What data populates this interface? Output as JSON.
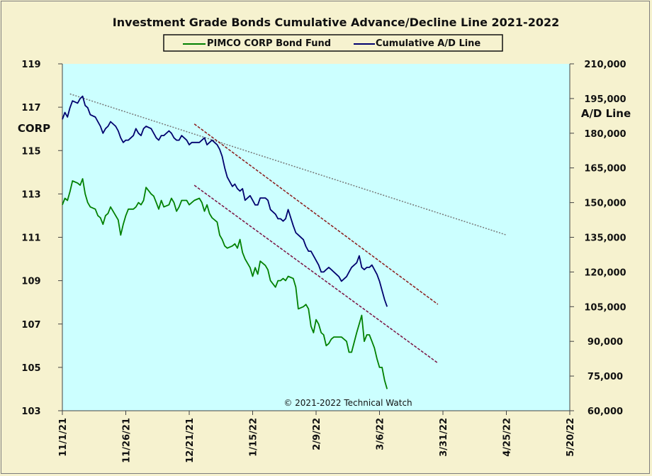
{
  "chart_data": {
    "type": "line",
    "title": "Investment  Grade Bonds Cumulative  Advance/Decline  Line  2021-2022",
    "left_axis_label": "CORP",
    "right_axis_label": "A/D Line",
    "annotation": "© 2021-2022  Technical  Watch",
    "x_ticks": [
      "11/1/21",
      "11/26/21",
      "12/21/21",
      "1/15/22",
      "2/9/22",
      "3/6/22",
      "3/31/22",
      "4/25/22",
      "5/20/22"
    ],
    "x_range": [
      "2021-11-01",
      "2022-05-20"
    ],
    "left_ticks": [
      "103",
      "105",
      "107",
      "109",
      "111",
      "113",
      "115",
      "117",
      "119"
    ],
    "left_range": [
      103,
      119
    ],
    "right_ticks": [
      "60,000",
      "75,000",
      "90,000",
      "105,000",
      "120,000",
      "135,000",
      "150,000",
      "165,000",
      "180,000",
      "195,000",
      "210,000"
    ],
    "right_range": [
      60000,
      210000
    ],
    "plot_background": "#ccffff",
    "page_background": "#f6f2cf",
    "legend_placement": "top",
    "series": [
      {
        "name": "PIMCO CORP Bond Fund",
        "axis": "left",
        "color": "#008000",
        "points": [
          [
            "2021-11-01",
            112.5
          ],
          [
            "2021-11-02",
            112.8
          ],
          [
            "2021-11-03",
            112.7
          ],
          [
            "2021-11-04",
            113.1
          ],
          [
            "2021-11-05",
            113.6
          ],
          [
            "2021-11-07",
            113.5
          ],
          [
            "2021-11-08",
            113.4
          ],
          [
            "2021-11-09",
            113.7
          ],
          [
            "2021-11-10",
            113.0
          ],
          [
            "2021-11-11",
            112.6
          ],
          [
            "2021-11-12",
            112.4
          ],
          [
            "2021-11-14",
            112.3
          ],
          [
            "2021-11-15",
            112.0
          ],
          [
            "2021-11-16",
            111.9
          ],
          [
            "2021-11-17",
            111.6
          ],
          [
            "2021-11-18",
            112.0
          ],
          [
            "2021-11-19",
            112.1
          ],
          [
            "2021-11-20",
            112.4
          ],
          [
            "2021-11-22",
            112.0
          ],
          [
            "2021-11-23",
            111.8
          ],
          [
            "2021-11-24",
            111.1
          ],
          [
            "2021-11-25",
            111.6
          ],
          [
            "2021-11-26",
            112.0
          ],
          [
            "2021-11-27",
            112.3
          ],
          [
            "2021-11-29",
            112.3
          ],
          [
            "2021-11-30",
            112.4
          ],
          [
            "2021-12-01",
            112.6
          ],
          [
            "2021-12-02",
            112.5
          ],
          [
            "2021-12-03",
            112.7
          ],
          [
            "2021-12-04",
            113.3
          ],
          [
            "2021-12-06",
            113.0
          ],
          [
            "2021-12-07",
            112.9
          ],
          [
            "2021-12-08",
            112.6
          ],
          [
            "2021-12-09",
            112.3
          ],
          [
            "2021-12-10",
            112.7
          ],
          [
            "2021-12-11",
            112.4
          ],
          [
            "2021-12-13",
            112.5
          ],
          [
            "2021-12-14",
            112.8
          ],
          [
            "2021-12-15",
            112.6
          ],
          [
            "2021-12-16",
            112.2
          ],
          [
            "2021-12-17",
            112.4
          ],
          [
            "2021-12-18",
            112.7
          ],
          [
            "2021-12-20",
            112.7
          ],
          [
            "2021-12-21",
            112.5
          ],
          [
            "2021-12-22",
            112.6
          ],
          [
            "2021-12-23",
            112.7
          ],
          [
            "2021-12-25",
            112.8
          ],
          [
            "2021-12-26",
            112.6
          ],
          [
            "2021-12-27",
            112.2
          ],
          [
            "2021-12-28",
            112.5
          ],
          [
            "2021-12-29",
            112.1
          ],
          [
            "2021-12-30",
            111.9
          ],
          [
            "2022-01-01",
            111.7
          ],
          [
            "2022-01-02",
            111.1
          ],
          [
            "2022-01-03",
            110.9
          ],
          [
            "2022-01-04",
            110.6
          ],
          [
            "2022-01-05",
            110.5
          ],
          [
            "2022-01-07",
            110.6
          ],
          [
            "2022-01-08",
            110.7
          ],
          [
            "2022-01-09",
            110.5
          ],
          [
            "2022-01-10",
            110.9
          ],
          [
            "2022-01-11",
            110.3
          ],
          [
            "2022-01-12",
            110.0
          ],
          [
            "2022-01-14",
            109.6
          ],
          [
            "2022-01-15",
            109.2
          ],
          [
            "2022-01-16",
            109.6
          ],
          [
            "2022-01-17",
            109.3
          ],
          [
            "2022-01-18",
            109.9
          ],
          [
            "2022-01-20",
            109.7
          ],
          [
            "2022-01-21",
            109.5
          ],
          [
            "2022-01-22",
            109.0
          ],
          [
            "2022-01-24",
            108.7
          ],
          [
            "2022-01-25",
            109.0
          ],
          [
            "2022-01-26",
            109.0
          ],
          [
            "2022-01-27",
            109.1
          ],
          [
            "2022-01-28",
            109.0
          ],
          [
            "2022-01-29",
            109.2
          ],
          [
            "2022-01-31",
            109.1
          ],
          [
            "2022-02-01",
            108.7
          ],
          [
            "2022-02-02",
            107.7
          ],
          [
            "2022-02-04",
            107.8
          ],
          [
            "2022-02-05",
            107.9
          ],
          [
            "2022-02-06",
            107.7
          ],
          [
            "2022-02-07",
            106.9
          ],
          [
            "2022-02-08",
            106.6
          ],
          [
            "2022-02-09",
            107.2
          ],
          [
            "2022-02-10",
            107.0
          ],
          [
            "2022-02-11",
            106.6
          ],
          [
            "2022-02-12",
            106.5
          ],
          [
            "2022-02-13",
            106.0
          ],
          [
            "2022-02-14",
            106.1
          ],
          [
            "2022-02-15",
            106.3
          ],
          [
            "2022-02-16",
            106.4
          ],
          [
            "2022-02-18",
            106.4
          ],
          [
            "2022-02-19",
            106.4
          ],
          [
            "2022-02-21",
            106.2
          ],
          [
            "2022-02-22",
            105.7
          ],
          [
            "2022-02-23",
            105.7
          ],
          [
            "2022-02-25",
            106.6
          ],
          [
            "2022-02-27",
            107.4
          ],
          [
            "2022-02-28",
            106.2
          ],
          [
            "2022-03-01",
            106.5
          ],
          [
            "2022-03-02",
            106.5
          ],
          [
            "2022-03-03",
            106.2
          ],
          [
            "2022-03-04",
            105.9
          ],
          [
            "2022-03-05",
            105.4
          ],
          [
            "2022-03-06",
            105.0
          ],
          [
            "2022-03-07",
            105.0
          ],
          [
            "2022-03-08",
            104.4
          ],
          [
            "2022-03-09",
            104.0
          ]
        ]
      },
      {
        "name": "Cumulative A/D Line",
        "axis": "right",
        "color": "#00006e",
        "points": [
          [
            "2021-11-01",
            186000
          ],
          [
            "2021-11-02",
            189000
          ],
          [
            "2021-11-03",
            187000
          ],
          [
            "2021-11-04",
            191000
          ],
          [
            "2021-11-05",
            194000
          ],
          [
            "2021-11-07",
            193000
          ],
          [
            "2021-11-08",
            195000
          ],
          [
            "2021-11-09",
            196000
          ],
          [
            "2021-11-10",
            192000
          ],
          [
            "2021-11-11",
            191000
          ],
          [
            "2021-11-12",
            188000
          ],
          [
            "2021-11-14",
            187000
          ],
          [
            "2021-11-15",
            185000
          ],
          [
            "2021-11-16",
            183000
          ],
          [
            "2021-11-17",
            180000
          ],
          [
            "2021-11-18",
            182000
          ],
          [
            "2021-11-19",
            183000
          ],
          [
            "2021-11-20",
            185000
          ],
          [
            "2021-11-22",
            183000
          ],
          [
            "2021-11-23",
            181000
          ],
          [
            "2021-11-24",
            178000
          ],
          [
            "2021-11-25",
            176000
          ],
          [
            "2021-11-26",
            177000
          ],
          [
            "2021-11-27",
            177000
          ],
          [
            "2021-11-29",
            179000
          ],
          [
            "2021-11-30",
            182000
          ],
          [
            "2021-12-01",
            180000
          ],
          [
            "2021-12-02",
            179000
          ],
          [
            "2021-12-03",
            182000
          ],
          [
            "2021-12-04",
            183000
          ],
          [
            "2021-12-06",
            182000
          ],
          [
            "2021-12-07",
            180000
          ],
          [
            "2021-12-08",
            178000
          ],
          [
            "2021-12-09",
            177000
          ],
          [
            "2021-12-10",
            179000
          ],
          [
            "2021-12-11",
            179000
          ],
          [
            "2021-12-13",
            181000
          ],
          [
            "2021-12-14",
            180000
          ],
          [
            "2021-12-15",
            178000
          ],
          [
            "2021-12-16",
            177000
          ],
          [
            "2021-12-17",
            177000
          ],
          [
            "2021-12-18",
            179000
          ],
          [
            "2021-12-20",
            177000
          ],
          [
            "2021-12-21",
            175000
          ],
          [
            "2021-12-22",
            176000
          ],
          [
            "2021-12-23",
            176000
          ],
          [
            "2021-12-25",
            176000
          ],
          [
            "2021-12-26",
            177000
          ],
          [
            "2021-12-27",
            178000
          ],
          [
            "2021-12-28",
            175000
          ],
          [
            "2021-12-29",
            176000
          ],
          [
            "2021-12-30",
            177000
          ],
          [
            "2022-01-01",
            175000
          ],
          [
            "2022-01-02",
            173000
          ],
          [
            "2022-01-03",
            170000
          ],
          [
            "2022-01-04",
            165000
          ],
          [
            "2022-01-05",
            161000
          ],
          [
            "2022-01-07",
            157000
          ],
          [
            "2022-01-08",
            158000
          ],
          [
            "2022-01-09",
            156000
          ],
          [
            "2022-01-10",
            155000
          ],
          [
            "2022-01-11",
            156000
          ],
          [
            "2022-01-12",
            151000
          ],
          [
            "2022-01-14",
            153000
          ],
          [
            "2022-01-15",
            151000
          ],
          [
            "2022-01-16",
            149000
          ],
          [
            "2022-01-17",
            149000
          ],
          [
            "2022-01-18",
            152000
          ],
          [
            "2022-01-20",
            152000
          ],
          [
            "2022-01-21",
            151000
          ],
          [
            "2022-01-22",
            147000
          ],
          [
            "2022-01-24",
            145000
          ],
          [
            "2022-01-25",
            143000
          ],
          [
            "2022-01-26",
            143000
          ],
          [
            "2022-01-27",
            142000
          ],
          [
            "2022-01-28",
            143000
          ],
          [
            "2022-01-29",
            147000
          ],
          [
            "2022-01-31",
            140000
          ],
          [
            "2022-02-01",
            137000
          ],
          [
            "2022-02-02",
            136000
          ],
          [
            "2022-02-04",
            134000
          ],
          [
            "2022-02-05",
            131000
          ],
          [
            "2022-02-06",
            129000
          ],
          [
            "2022-02-07",
            129000
          ],
          [
            "2022-02-08",
            127000
          ],
          [
            "2022-02-09",
            125000
          ],
          [
            "2022-02-10",
            123000
          ],
          [
            "2022-02-11",
            120000
          ],
          [
            "2022-02-12",
            120000
          ],
          [
            "2022-02-13",
            121000
          ],
          [
            "2022-02-14",
            122000
          ],
          [
            "2022-02-15",
            121000
          ],
          [
            "2022-02-16",
            120000
          ],
          [
            "2022-02-18",
            118000
          ],
          [
            "2022-02-19",
            116000
          ],
          [
            "2022-02-21",
            118000
          ],
          [
            "2022-02-22",
            120000
          ],
          [
            "2022-02-23",
            122000
          ],
          [
            "2022-02-25",
            124000
          ],
          [
            "2022-02-26",
            127000
          ],
          [
            "2022-02-27",
            122000
          ],
          [
            "2022-02-28",
            121000
          ],
          [
            "2022-03-01",
            122000
          ],
          [
            "2022-03-02",
            122000
          ],
          [
            "2022-03-03",
            123000
          ],
          [
            "2022-03-04",
            121000
          ],
          [
            "2022-03-05",
            119000
          ],
          [
            "2022-03-06",
            116000
          ],
          [
            "2022-03-07",
            112000
          ],
          [
            "2022-03-08",
            108000
          ],
          [
            "2022-03-09",
            105000
          ]
        ]
      }
    ],
    "trendlines": [
      {
        "axis": "right",
        "color": "#777777",
        "style": "dotted",
        "from": [
          "2021-11-04",
          197000
        ],
        "to": [
          "2022-04-25",
          136000
        ]
      },
      {
        "axis": "right",
        "color": "#8b1a1a",
        "style": "dashed",
        "from": [
          "2021-12-23",
          184000
        ],
        "to": [
          "2022-03-29",
          106000
        ]
      },
      {
        "axis": "left",
        "color": "#7a1040",
        "style": "dashed",
        "from": [
          "2021-12-23",
          113.4
        ],
        "to": [
          "2022-03-29",
          105.2
        ]
      }
    ]
  }
}
